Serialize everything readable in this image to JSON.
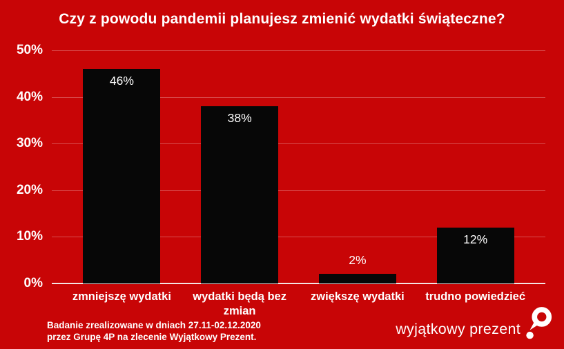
{
  "title": "Czy z powodu pandemii planujesz zmienić wydatki świąteczne?",
  "chart_data": {
    "type": "bar",
    "title": "Czy z powodu pandemii planujesz zmienić wydatki świąteczne?",
    "categories": [
      "zmniejszę wydatki",
      "wydatki będą bez zmian",
      "zwiększę wydatki",
      "trudno powiedzieć"
    ],
    "values": [
      46,
      38,
      2,
      12
    ],
    "value_labels": [
      "46%",
      "38%",
      "2%",
      "12%"
    ],
    "y_tick_values": [
      0,
      10,
      20,
      30,
      40,
      50
    ],
    "y_tick_labels": [
      "0%",
      "10%",
      "20%",
      "30%",
      "40%",
      "50%"
    ],
    "ylim": [
      0,
      50
    ],
    "grid": true,
    "legend": "none",
    "background_color": "#C80506",
    "bar_color": "#070707",
    "grid_color": "rgba(255,255,255,0.3)",
    "axis_color": "#F4E4E4",
    "text_color": "#FFFFFF"
  },
  "footer": {
    "line1": "Badanie zrealizowane w dniach 27.11-02.12.2020",
    "line2": "przez Grupę 4P na zlecenie Wyjątkowy Prezent."
  },
  "logo": {
    "text": "wyjątkowy prezent",
    "icon": "balloon-pin-icon"
  }
}
